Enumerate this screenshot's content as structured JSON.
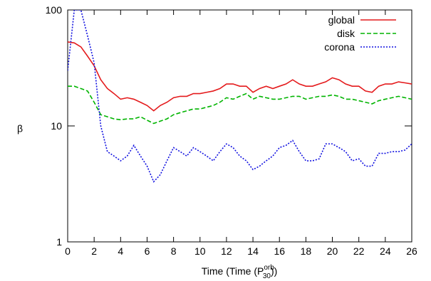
{
  "chart_data": {
    "type": "line",
    "ylabel": "β",
    "xlabel": {
      "text": "Time (Time (P",
      "sup": "orb",
      "sub": "30",
      "end": "))"
    },
    "x": [
      0,
      0.5,
      1,
      1.5,
      2,
      2.5,
      3,
      3.5,
      4,
      4.5,
      5,
      5.5,
      6,
      6.5,
      7,
      7.5,
      8,
      8.5,
      9,
      9.5,
      10,
      10.5,
      11,
      11.5,
      12,
      12.5,
      13,
      13.5,
      14,
      14.5,
      15,
      15.5,
      16,
      16.5,
      17,
      17.5,
      18,
      18.5,
      19,
      19.5,
      20,
      20.5,
      21,
      21.5,
      22,
      22.5,
      23,
      23.5,
      24,
      24.5,
      25,
      25.5,
      26
    ],
    "series": [
      {
        "name": "global",
        "color": "#e41a1c",
        "dash": "solid",
        "values": [
          53,
          52,
          48,
          40,
          33,
          25,
          21,
          19,
          17,
          17.5,
          17,
          16,
          15,
          13.5,
          15,
          16,
          17.5,
          18,
          18,
          19,
          19,
          19.5,
          20,
          21,
          23,
          23,
          22,
          22,
          19.5,
          21,
          22,
          21,
          22,
          23,
          25,
          23,
          22,
          22,
          23,
          24,
          26,
          25,
          23,
          22,
          22,
          20,
          19.5,
          22,
          23,
          23,
          24,
          23.5,
          23
        ]
      },
      {
        "name": "disk",
        "color": "#00b400",
        "dash": "dashed",
        "values": [
          22,
          22,
          21,
          20,
          16,
          12.5,
          12,
          11.5,
          11.3,
          11.5,
          11.5,
          12,
          11.2,
          10.5,
          11,
          11.5,
          12.5,
          13,
          13.5,
          14,
          14,
          14.5,
          15,
          16,
          17.5,
          17,
          18,
          19,
          17,
          18,
          17.5,
          17,
          17,
          17.5,
          18,
          18,
          17,
          17.5,
          18,
          18,
          18.5,
          18,
          17,
          17,
          16.5,
          16,
          15.5,
          16.5,
          17,
          17.5,
          18,
          17.5,
          17
        ]
      },
      {
        "name": "corona",
        "color": "#1010e0",
        "dash": "dotted",
        "values": [
          30,
          100,
          100,
          60,
          35,
          10,
          6,
          5.5,
          5,
          5.5,
          6.8,
          5.5,
          4.5,
          3.3,
          3.8,
          5,
          6.5,
          6,
          5.5,
          6.5,
          6,
          5.5,
          5,
          6,
          7,
          6.5,
          5.5,
          5,
          4.2,
          4.5,
          5,
          5.5,
          6.5,
          6.8,
          7.5,
          6,
          5,
          5,
          5.2,
          7,
          7,
          6.5,
          6,
          5,
          5.2,
          4.5,
          4.5,
          5.8,
          5.8,
          6,
          6,
          6.2,
          7
        ]
      }
    ],
    "xlim": [
      0,
      26
    ],
    "xticks": [
      0,
      2,
      4,
      6,
      8,
      10,
      12,
      14,
      16,
      18,
      20,
      22,
      24,
      26
    ],
    "ylim": [
      1,
      100
    ],
    "yticks": [
      1,
      10,
      100
    ],
    "ylog": true,
    "legend": "top-right"
  }
}
